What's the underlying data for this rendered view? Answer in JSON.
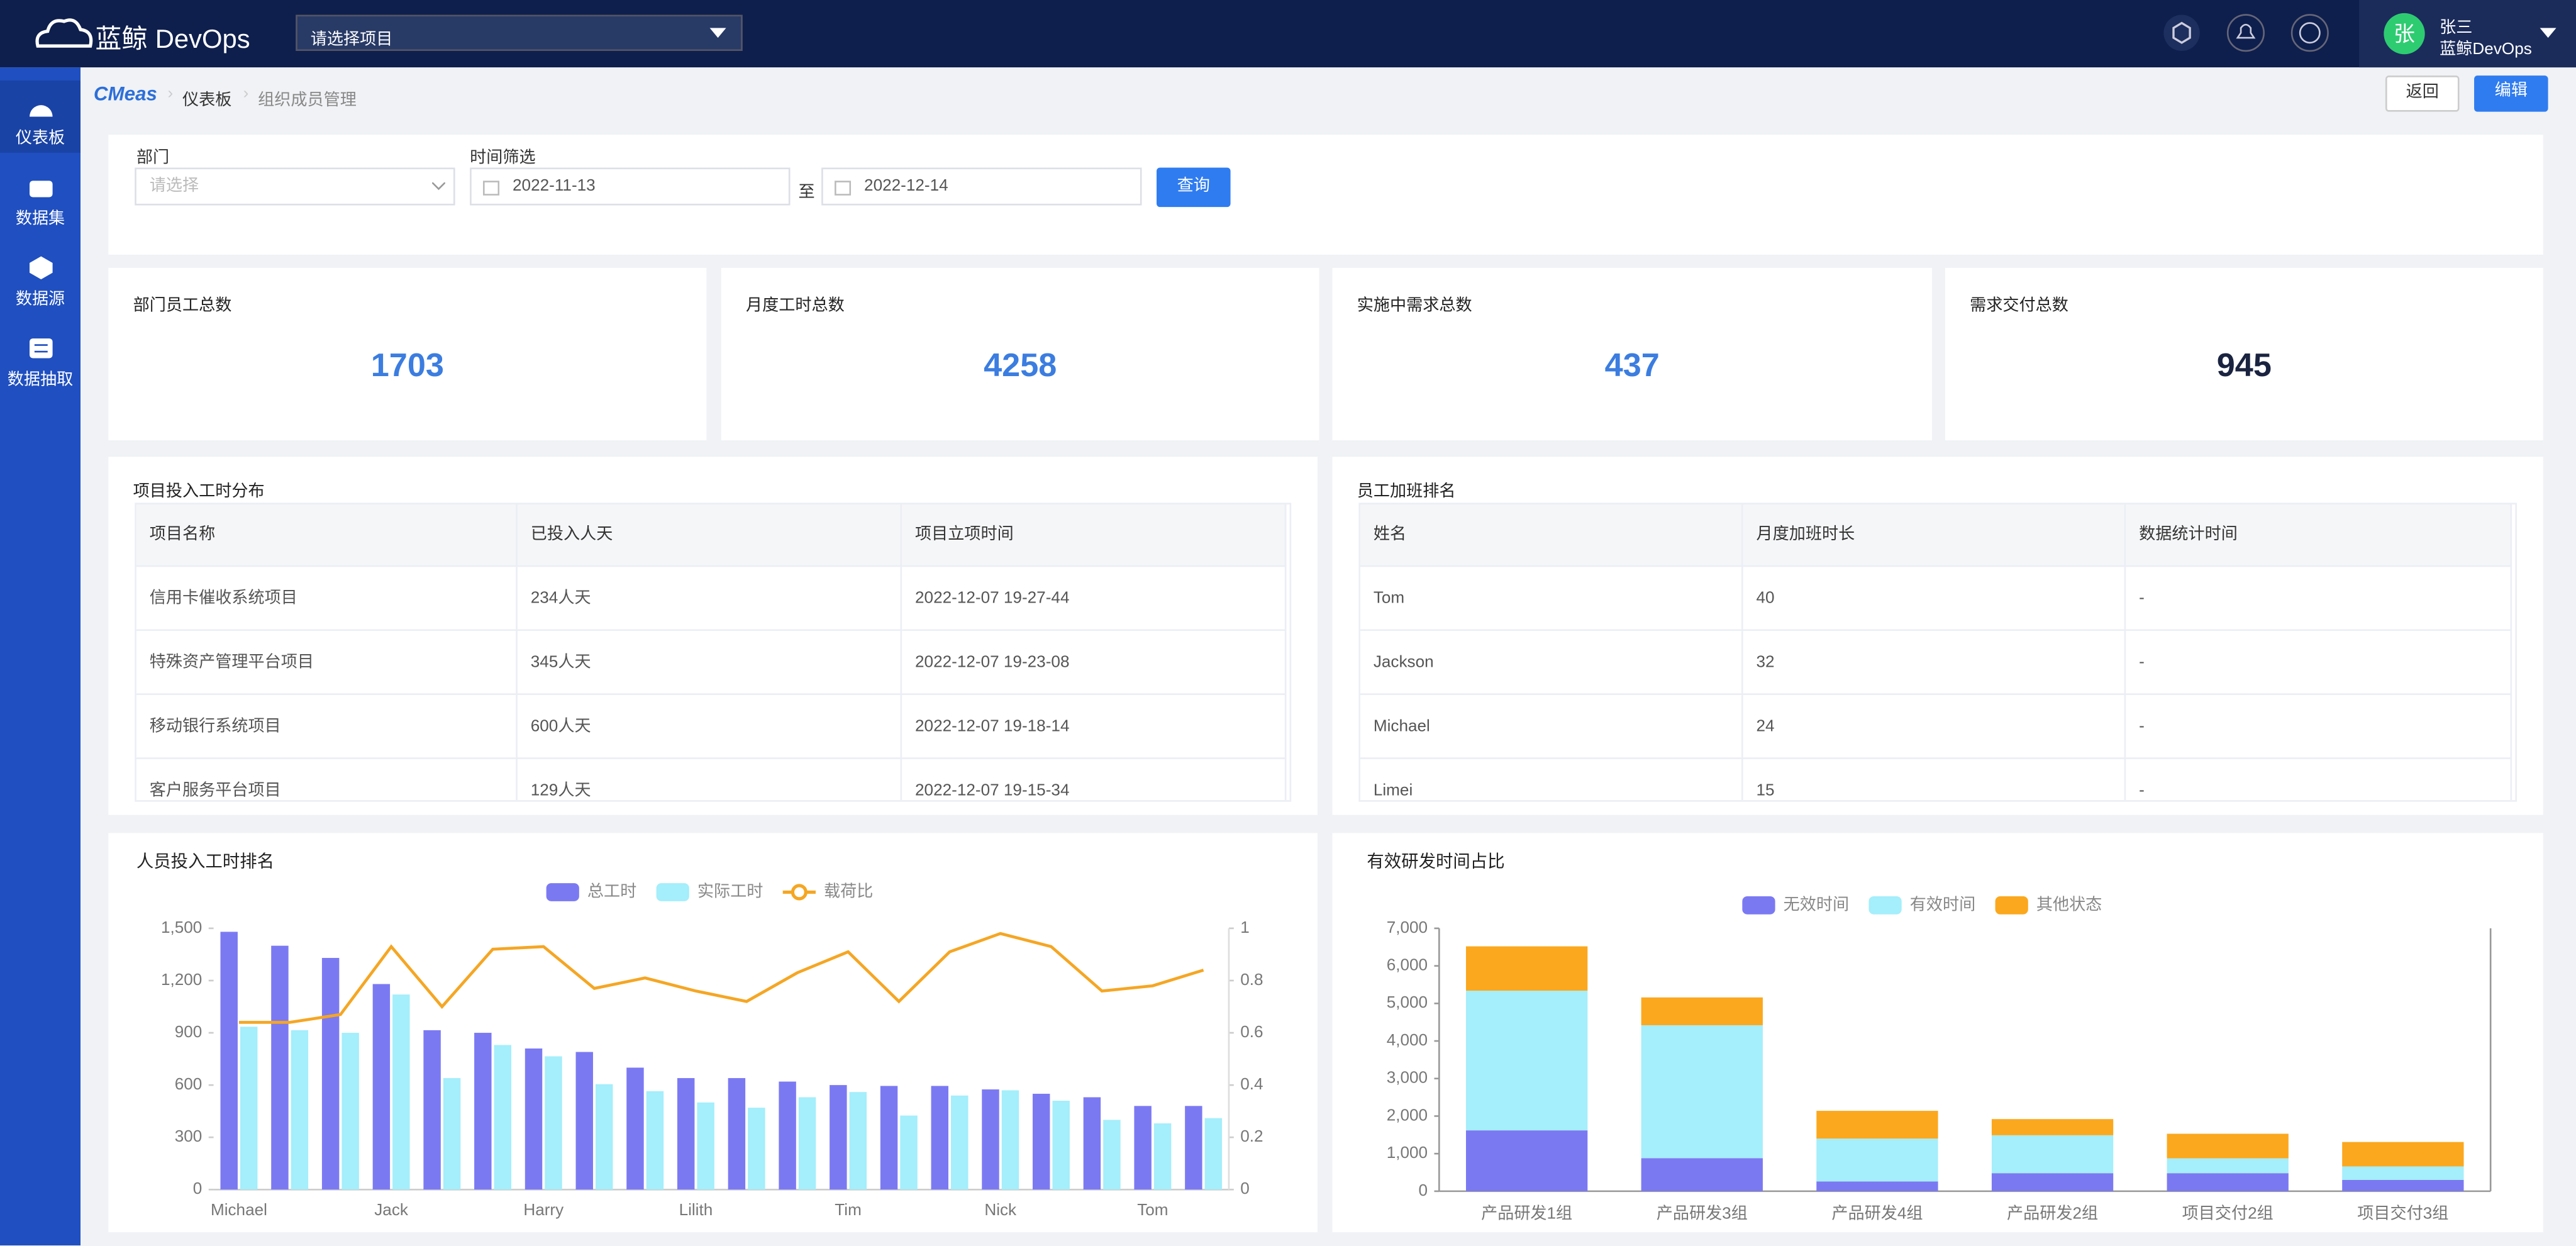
{
  "header": {
    "logo": "蓝鲸 DevOps",
    "project_select": "请选择项目",
    "user_avatar": "张",
    "user_name": "张三",
    "user_org": "蓝鲸DevOps"
  },
  "sidebar": [
    "仪表板",
    "数据集",
    "数据源",
    "数据抽取"
  ],
  "breadcrumb": {
    "brand": "CMeas",
    "items": [
      "仪表板",
      "组织成员管理"
    ]
  },
  "actions": {
    "back": "返回",
    "edit": "编辑"
  },
  "filters": {
    "dept_label": "部门",
    "dept_placeholder": "请选择",
    "time_label": "时间筛选",
    "start": "2022-11-13",
    "to": "至",
    "end": "2022-12-14",
    "query": "查询"
  },
  "kpis": [
    {
      "label": "部门员工总数",
      "value": 1703
    },
    {
      "label": "月度工时总数",
      "value": 4258
    },
    {
      "label": "实施中需求总数",
      "value": 437
    },
    {
      "label": "需求交付总数",
      "value": 945
    }
  ],
  "tables": [
    {
      "title": "项目投入工时分布",
      "headers": [
        "项目名称",
        "已投入人天",
        "项目立项时间"
      ],
      "rows": [
        [
          "信用卡催收系统项目",
          "234人天",
          "2022-12-07 19-27-44"
        ],
        [
          "特殊资产管理平台项目",
          "345人天",
          "2022-12-07 19-23-08"
        ],
        [
          "移动银行系统项目",
          "600人天",
          "2022-12-07 19-18-14"
        ],
        [
          "客户服务平台项目",
          "129人天",
          "2022-12-07 19-15-34"
        ]
      ]
    },
    {
      "title": "员工加班排名",
      "headers": [
        "姓名",
        "月度加班时长",
        "数据统计时间"
      ],
      "rows": [
        [
          "Tom",
          40,
          "-"
        ],
        [
          "Jackson",
          32,
          "-"
        ],
        [
          "Michael",
          24,
          "-"
        ],
        [
          "Limei",
          15,
          "-"
        ]
      ]
    }
  ],
  "chart_data": [
    {
      "type": "bar",
      "title": "人员投入工时排名",
      "legend": "top",
      "grid": false,
      "categories": [
        "Michael",
        null,
        null,
        "Jack",
        null,
        null,
        "Harry",
        null,
        null,
        "Lilith",
        null,
        null,
        "Tim",
        null,
        null,
        "Nick",
        null,
        null,
        "Tom",
        null
      ],
      "ylim": [
        0,
        1500
      ],
      "yticks": [
        0,
        300,
        600,
        900,
        {
          "value": 1200,
          "label": "1,200"
        },
        {
          "value": 1500,
          "label": "1,500"
        }
      ],
      "y2lim": [
        0,
        1
      ],
      "y2ticks": [
        0,
        0.2,
        0.4,
        0.6,
        0.8,
        1
      ],
      "series": [
        {
          "name": "总工时",
          "type": "bar",
          "color": "#7b79f2",
          "values": [
            1480,
            1400,
            1330,
            1180,
            915,
            900,
            810,
            790,
            700,
            640,
            640,
            620,
            600,
            595,
            595,
            575,
            550,
            530,
            480,
            480
          ]
        },
        {
          "name": "实际工时",
          "type": "bar",
          "color": "#a5eefb",
          "values": [
            935,
            915,
            900,
            1120,
            640,
            830,
            765,
            605,
            565,
            500,
            470,
            530,
            560,
            425,
            540,
            570,
            510,
            400,
            380,
            410
          ]
        },
        {
          "name": "载荷比",
          "type": "line",
          "axis": "y2",
          "color": "#f5a623",
          "values": [
            0.64,
            0.64,
            0.67,
            0.93,
            0.7,
            0.92,
            0.93,
            0.77,
            0.81,
            0.76,
            0.72,
            0.83,
            0.91,
            0.72,
            0.91,
            0.98,
            0.93,
            0.76,
            0.78,
            0.84
          ]
        }
      ]
    },
    {
      "type": "stacked-bar",
      "title": "有效研发时间占比",
      "legend": "top",
      "grid": false,
      "categories": [
        "产品研发1组",
        "产品研发3组",
        "产品研发4组",
        "产品研发2组",
        "项目交付2组",
        "项目交付3组"
      ],
      "ylim": [
        0,
        7000
      ],
      "yticks": [
        0,
        {
          "value": 1000,
          "label": "1,000"
        },
        {
          "value": 2000,
          "label": "2,000"
        },
        {
          "value": 3000,
          "label": "3,000"
        },
        {
          "value": 4000,
          "label": "4,000"
        },
        {
          "value": 5000,
          "label": "5,000"
        },
        {
          "value": 6000,
          "label": "6,000"
        },
        {
          "value": 7000,
          "label": "7,000"
        }
      ],
      "series": [
        {
          "name": "无效时间",
          "color": "#7b79f2",
          "values": [
            1620,
            880,
            260,
            480,
            480,
            300
          ]
        },
        {
          "name": "有效时间",
          "color": "#a5eefb",
          "values": [
            3720,
            3540,
            1140,
            1010,
            395,
            360
          ]
        },
        {
          "name": "其他状态",
          "color": "#fba81e",
          "values": [
            1180,
            740,
            740,
            430,
            655,
            650
          ]
        }
      ]
    }
  ]
}
